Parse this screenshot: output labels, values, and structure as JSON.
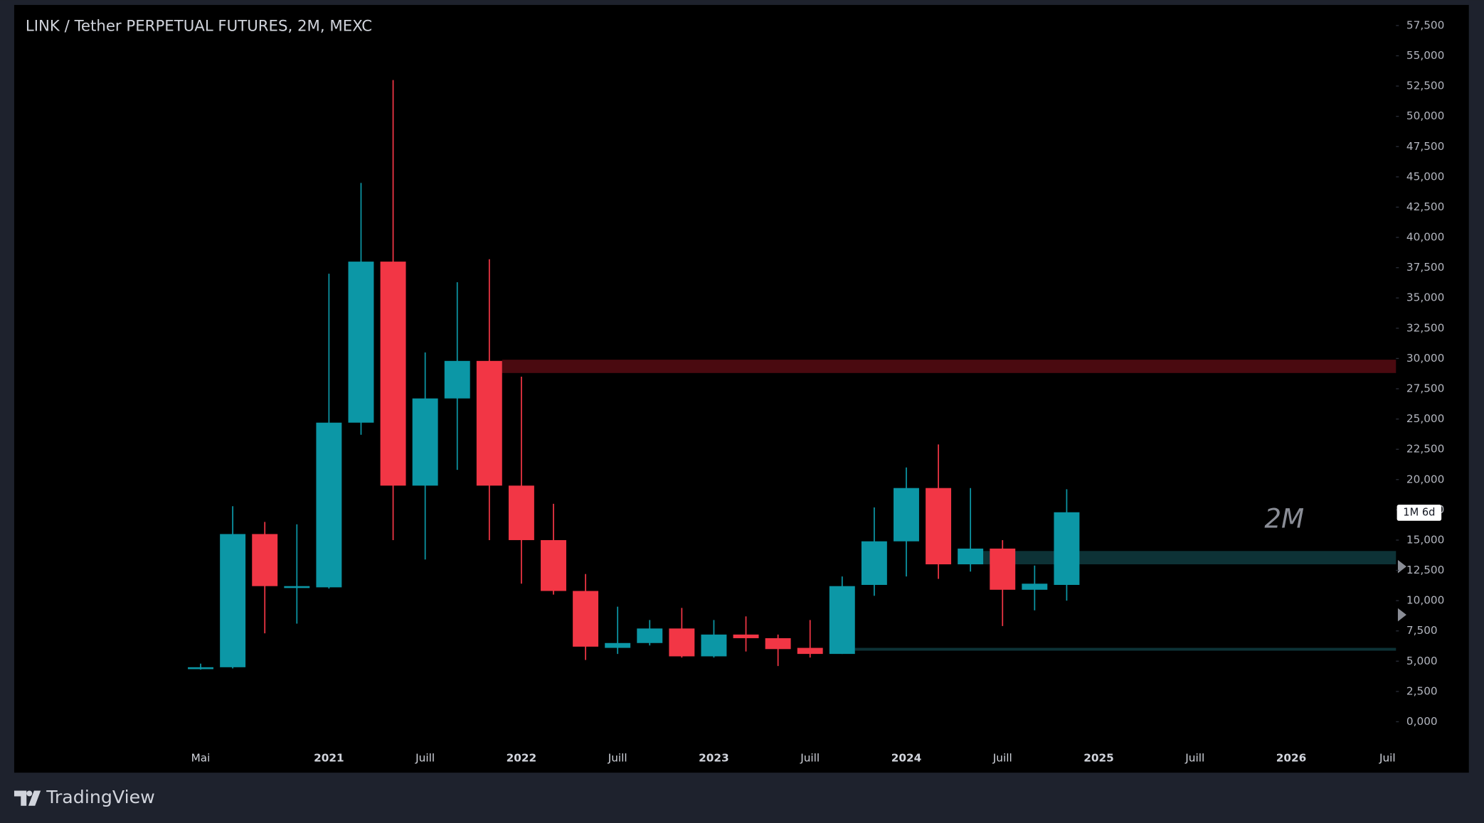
{
  "chart_data": {
    "type": "candlestick",
    "title": "LINK / Tether PERPETUAL FUTURES, 2M, MEXC",
    "categories": [
      "Mai",
      null,
      null,
      null,
      "2021",
      null,
      null,
      "Juill",
      null,
      null,
      "2022",
      null,
      null,
      "Juill",
      null,
      null,
      "2023",
      null,
      null,
      "Juill",
      null,
      null,
      "2024",
      null,
      null,
      "Juill",
      null,
      null,
      "2025",
      null,
      null,
      "Juill",
      null,
      null,
      "2026",
      null,
      null,
      "Juil"
    ],
    "open": [
      4400,
      4500,
      15500,
      11100,
      11100,
      24700,
      38000,
      19500,
      26700,
      29800,
      19500,
      15000,
      10800,
      6100,
      6500,
      7700,
      5400,
      7200,
      6900,
      6100,
      5600,
      11300,
      14900,
      19300,
      13000,
      14300,
      10900,
      11300,
      null,
      null,
      null,
      null,
      null,
      null,
      null,
      null,
      null,
      null
    ],
    "high": [
      4800,
      17800,
      16500,
      16300,
      37000,
      44500,
      53000,
      30500,
      36300,
      38200,
      28500,
      18000,
      12200,
      9500,
      8400,
      9400,
      8400,
      8700,
      7200,
      8400,
      12000,
      17700,
      21000,
      22900,
      19300,
      15000,
      12900,
      19200,
      null,
      null,
      null,
      null,
      null,
      null,
      null,
      null,
      null,
      null
    ],
    "low": [
      4300,
      4400,
      7300,
      8100,
      11000,
      23700,
      15000,
      13400,
      20800,
      15000,
      11400,
      10500,
      5100,
      5600,
      6300,
      5300,
      5300,
      5800,
      4600,
      5300,
      5600,
      10400,
      12000,
      11800,
      12400,
      7900,
      9200,
      10000,
      null,
      null,
      null,
      null,
      null,
      null,
      null,
      null,
      null,
      null
    ],
    "close": [
      4500,
      15500,
      11200,
      11200,
      24700,
      38000,
      19500,
      26700,
      29800,
      19500,
      15000,
      10800,
      6200,
      6500,
      7700,
      5400,
      7200,
      6900,
      6000,
      5600,
      11200,
      14900,
      19300,
      13000,
      14300,
      10900,
      11400,
      17300,
      null,
      null,
      null,
      null,
      null,
      null,
      null,
      null,
      null,
      null
    ],
    "up_color": "#0c97a6",
    "down_color": "#f23645",
    "ylim": [
      -2100,
      59200
    ],
    "yticks": [
      {
        "value": 0,
        "label": "0,000"
      },
      {
        "value": 2500,
        "label": "2,500"
      },
      {
        "value": 5000,
        "label": "5,000"
      },
      {
        "value": 7500,
        "label": "7,500"
      },
      {
        "value": 10000,
        "label": "10,000"
      },
      {
        "value": 12500,
        "label": "12,500"
      },
      {
        "value": 15000,
        "label": "15,000"
      },
      {
        "value": 17500,
        "label": "17,500"
      },
      {
        "value": 20000,
        "label": "20,000"
      },
      {
        "value": 22500,
        "label": "22,500"
      },
      {
        "value": 25000,
        "label": "25,000"
      },
      {
        "value": 27500,
        "label": "27,500"
      },
      {
        "value": 30000,
        "label": "30,000"
      },
      {
        "value": 32500,
        "label": "32,500"
      },
      {
        "value": 35000,
        "label": "35,000"
      },
      {
        "value": 37500,
        "label": "37,500"
      },
      {
        "value": 40000,
        "label": "40,000"
      },
      {
        "value": 42500,
        "label": "42,500"
      },
      {
        "value": 45000,
        "label": "45,000"
      },
      {
        "value": 47500,
        "label": "47,500"
      },
      {
        "value": 50000,
        "label": "50,000"
      },
      {
        "value": 52500,
        "label": "52,500"
      },
      {
        "value": 55000,
        "label": "55,000"
      },
      {
        "value": 57500,
        "label": "57,500"
      }
    ],
    "zones": [
      {
        "from": 9,
        "low": 28800,
        "high": 29900,
        "color": "#4a0a10"
      },
      {
        "from": 24,
        "low": 13000,
        "high": 14100,
        "color": "#0d3236"
      },
      {
        "from": 20,
        "low": 5900,
        "high": 6100,
        "color": "#0d3236"
      }
    ],
    "annotation": "2M",
    "countdown": "1M 6d"
  },
  "footer": {
    "brand": "TradingView"
  }
}
